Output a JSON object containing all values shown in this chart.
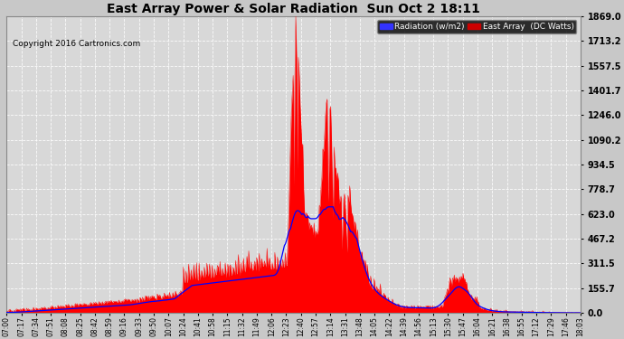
{
  "title": "East Array Power & Solar Radiation  Sun Oct 2 18:11",
  "copyright": "Copyright 2016 Cartronics.com",
  "yticks": [
    0.0,
    155.7,
    311.5,
    467.2,
    623.0,
    778.7,
    934.5,
    1090.2,
    1246.0,
    1401.7,
    1557.5,
    1713.2,
    1869.0
  ],
  "ymax": 1869.0,
  "time_labels": [
    "07:00",
    "07:17",
    "07:34",
    "07:51",
    "08:08",
    "08:25",
    "08:42",
    "08:59",
    "09:16",
    "09:33",
    "09:50",
    "10:07",
    "10:24",
    "10:41",
    "10:58",
    "11:15",
    "11:32",
    "11:49",
    "12:06",
    "12:23",
    "12:40",
    "12:57",
    "13:14",
    "13:31",
    "13:48",
    "14:05",
    "14:22",
    "14:39",
    "14:56",
    "15:13",
    "15:30",
    "15:47",
    "16:04",
    "16:21",
    "16:38",
    "16:55",
    "17:12",
    "17:29",
    "17:46",
    "18:03"
  ],
  "bg_color": "#c8c8c8",
  "plot_bg": "#d8d8d8",
  "grid_color": "#ffffff"
}
